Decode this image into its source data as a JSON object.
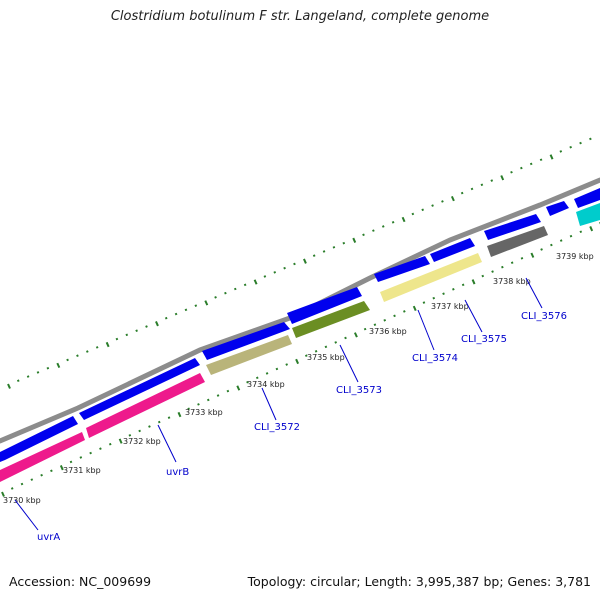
{
  "title": "Clostridium botulinum F str. Langeland, complete genome",
  "footer": {
    "accession": "Accession: NC_009699",
    "topology": "Topology: circular; Length: 3,995,387 bp; Genes: 3,781"
  },
  "colors": {
    "backbone": "#8c8c8c",
    "forward_gene": "#0000ee",
    "pink_gene": "#ee1a8c",
    "khaki_gene": "#b9b47a",
    "olive_gene": "#6b8e23",
    "pale_yellow_gene": "#eee68c",
    "gray_gene": "#666666",
    "cyan_gene": "#00cccc",
    "tick": "#2a7d2a",
    "label": "#0000cc"
  },
  "kbp_labels": [
    "3730 kbp",
    "3731 kbp",
    "3732 kbp",
    "3733 kbp",
    "3734 kbp",
    "3735 kbp",
    "3736 kbp",
    "3737 kbp",
    "3738 kbp",
    "3739 kbp"
  ],
  "gene_labels": [
    "uvrA",
    "uvrB",
    "CLI_3572",
    "CLI_3573",
    "CLI_3574",
    "CLI_3575",
    "CLI_3576"
  ]
}
